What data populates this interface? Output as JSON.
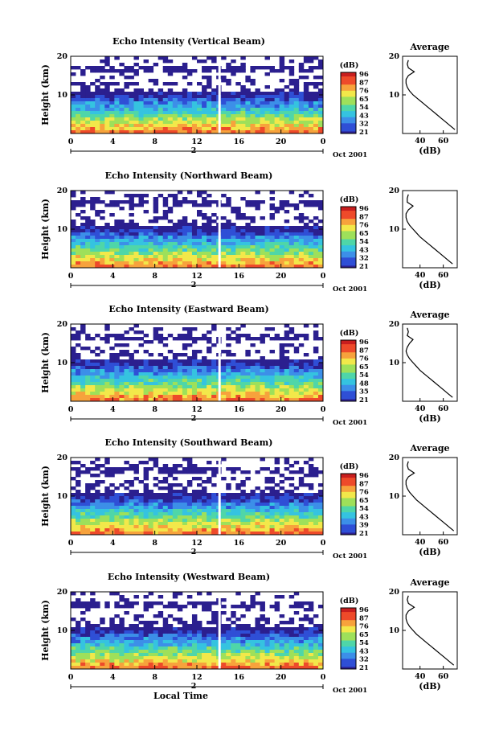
{
  "chart_data": [
    {
      "type": "heatmap",
      "title": "Echo Intensity (Vertical Beam)",
      "ylabel": "Height (km)",
      "x_ticks": [
        "0",
        "4",
        "8",
        "12",
        "16",
        "20",
        "0"
      ],
      "y_ticks": [
        "20",
        "10"
      ],
      "ylim": [
        0,
        20
      ],
      "date_tick": "2",
      "date_label": "Oct 2001",
      "colorbar": {
        "label": "(dB)",
        "ticks": [
          "96",
          "87",
          "76",
          "65",
          "54",
          "43",
          "32",
          "21"
        ]
      },
      "average_profile": {
        "title": "Average",
        "xlabel": "(dB)",
        "x_ticks": [
          "40",
          "60"
        ],
        "y_ticks": [
          "20",
          "10"
        ],
        "height_km": [
          1,
          2,
          3,
          4,
          5,
          6,
          7,
          8,
          9,
          10,
          11,
          12,
          13,
          14,
          15,
          16,
          17,
          18,
          19
        ],
        "dB": [
          70,
          66,
          62,
          58,
          54,
          50,
          46,
          42,
          38,
          34,
          31,
          29,
          28,
          28,
          30,
          35,
          30,
          29,
          30
        ]
      }
    },
    {
      "type": "heatmap",
      "title": "Echo Intensity (Northward Beam)",
      "ylabel": "Height (km)",
      "x_ticks": [
        "0",
        "4",
        "8",
        "12",
        "16",
        "20",
        "0"
      ],
      "y_ticks": [
        "20",
        "10"
      ],
      "ylim": [
        0,
        20
      ],
      "date_tick": "2",
      "date_label": "Oct 2001",
      "colorbar": {
        "label": "(dB)",
        "ticks": [
          "96",
          "87",
          "76",
          "65",
          "54",
          "43",
          "32",
          "21"
        ]
      },
      "average_profile": {
        "title": "",
        "xlabel": "(dB)",
        "x_ticks": [
          "40",
          "60"
        ],
        "y_ticks": [
          "20",
          "10"
        ],
        "height_km": [
          1,
          2,
          3,
          4,
          5,
          6,
          7,
          8,
          9,
          10,
          11,
          12,
          13,
          14,
          15,
          16,
          17,
          18,
          19
        ],
        "dB": [
          68,
          64,
          60,
          56,
          52,
          48,
          44,
          40,
          37,
          34,
          31,
          29,
          28,
          28,
          30,
          34,
          29,
          29,
          30
        ]
      }
    },
    {
      "type": "heatmap",
      "title": "Echo Intensity (Eastward Beam)",
      "ylabel": "Height (km)",
      "x_ticks": [
        "0",
        "4",
        "8",
        "12",
        "16",
        "20",
        "0"
      ],
      "y_ticks": [
        "20",
        "10"
      ],
      "ylim": [
        0,
        20
      ],
      "date_tick": "2",
      "date_label": "Oct 2001",
      "colorbar": {
        "label": "(dB)",
        "ticks": [
          "96",
          "87",
          "76",
          "65",
          "54",
          "48",
          "35",
          "21"
        ]
      },
      "average_profile": {
        "title": "Average",
        "xlabel": "(dB)",
        "x_ticks": [
          "40",
          "60"
        ],
        "y_ticks": [
          "20",
          "10"
        ],
        "height_km": [
          1,
          2,
          3,
          4,
          5,
          6,
          7,
          8,
          9,
          10,
          11,
          12,
          13,
          14,
          15,
          16,
          17,
          18,
          19
        ],
        "dB": [
          68,
          64,
          60,
          56,
          52,
          48,
          44,
          40,
          37,
          34,
          31,
          29,
          28,
          29,
          31,
          34,
          29,
          30,
          29
        ]
      }
    },
    {
      "type": "heatmap",
      "title": "Echo Intensity (Southward Beam)",
      "ylabel": "Height (km)",
      "x_ticks": [
        "0",
        "4",
        "8",
        "12",
        "16",
        "20",
        "0"
      ],
      "y_ticks": [
        "20",
        "10"
      ],
      "ylim": [
        0,
        20
      ],
      "date_tick": "2",
      "date_label": "Oct 2001",
      "colorbar": {
        "label": "(dB)",
        "ticks": [
          "96",
          "87",
          "76",
          "65",
          "54",
          "43",
          "39",
          "21"
        ]
      },
      "average_profile": {
        "title": "Average",
        "xlabel": "(dB)",
        "x_ticks": [
          "40",
          "60"
        ],
        "y_ticks": [
          "20",
          "10"
        ],
        "height_km": [
          1,
          2,
          3,
          4,
          5,
          6,
          7,
          8,
          9,
          10,
          11,
          12,
          13,
          14,
          15,
          16,
          17,
          18,
          19
        ],
        "dB": [
          69,
          65,
          61,
          57,
          53,
          49,
          45,
          41,
          37,
          34,
          31,
          29,
          28,
          28,
          30,
          35,
          30,
          29,
          30
        ]
      }
    },
    {
      "type": "heatmap",
      "title": "Echo Intensity (Westward Beam)",
      "ylabel": "Height (km)",
      "x_ticks": [
        "0",
        "4",
        "8",
        "12",
        "16",
        "20",
        "0"
      ],
      "y_ticks": [
        "20",
        "10"
      ],
      "ylim": [
        0,
        20
      ],
      "date_tick": "2",
      "date_label": "Oct 2001",
      "xlabel": "Local Time",
      "colorbar": {
        "label": "(dB)",
        "ticks": [
          "96",
          "87",
          "76",
          "65",
          "54",
          "43",
          "32",
          "21"
        ]
      },
      "average_profile": {
        "title": "Average",
        "xlabel": "(dB)",
        "x_ticks": [
          "40",
          "60"
        ],
        "y_ticks": [
          "20",
          "10"
        ],
        "height_km": [
          1,
          2,
          3,
          4,
          5,
          6,
          7,
          8,
          9,
          10,
          11,
          12,
          13,
          14,
          15,
          16,
          17,
          18,
          19
        ],
        "dB": [
          69,
          65,
          61,
          57,
          53,
          49,
          45,
          41,
          37,
          34,
          31,
          29,
          28,
          28,
          30,
          35,
          30,
          29,
          30
        ]
      }
    }
  ],
  "colors": {
    "colormap": [
      "#2b1f8f",
      "#2f4fd6",
      "#3c8fe8",
      "#35c3e0",
      "#4fd6a8",
      "#9ee05a",
      "#f2e84a",
      "#f7a23c",
      "#ee4a2a",
      "#c81e1e"
    ]
  }
}
